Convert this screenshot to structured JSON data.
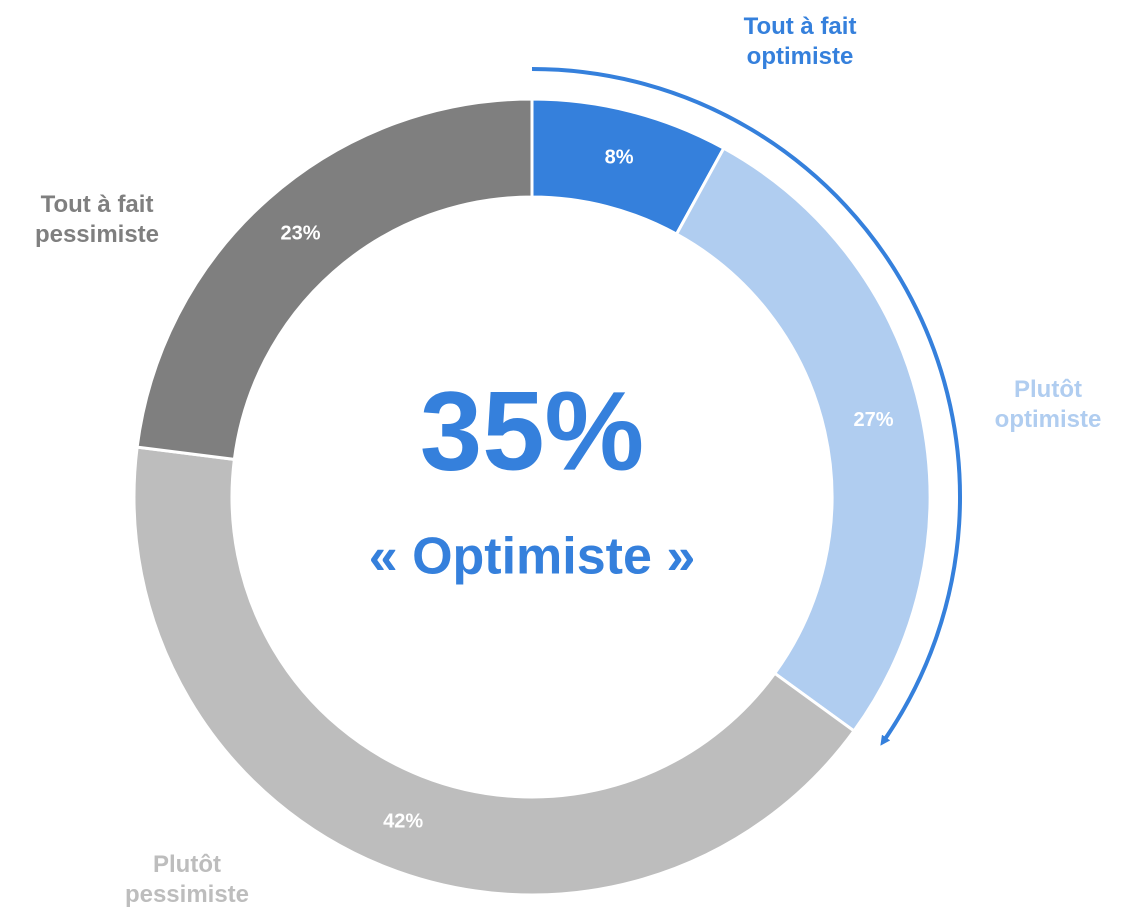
{
  "chart_data": {
    "type": "donut",
    "categories": [
      "Tout à fait optimiste",
      "Plutôt optimiste",
      "Plutôt pessimiste",
      "Tout à fait pessimiste"
    ],
    "values": [
      8,
      27,
      42,
      23
    ],
    "value_labels": [
      "8%",
      "27%",
      "42%",
      "23%"
    ],
    "colors": [
      "#3580dc",
      "#b0cdf0",
      "#bdbdbd",
      "#7f7f7f"
    ],
    "center_value": "35%",
    "center_label": "« Optimiste »"
  }
}
